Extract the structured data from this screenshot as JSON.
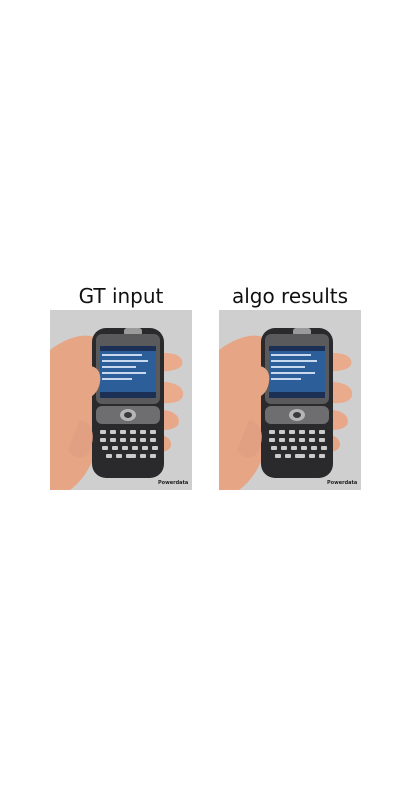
{
  "panels": [
    {
      "title": "GT input",
      "brand": "Powerdata"
    },
    {
      "title": "algo results",
      "brand": "Powerdata"
    }
  ],
  "colors": {
    "background": "#cfcfcf",
    "phone_body": "#2a2a2c",
    "screen": "#2c5f9a",
    "skin": "#e8a88a"
  }
}
